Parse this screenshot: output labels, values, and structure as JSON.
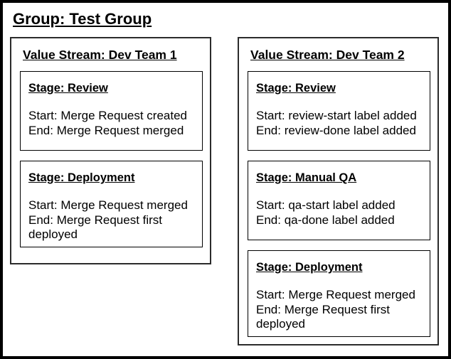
{
  "group": {
    "title": "Group: Test Group",
    "value_streams": [
      {
        "title": "Value Stream: Dev Team 1",
        "stages": [
          {
            "title": "Stage: Review",
            "start": "Start: Merge Request created",
            "end": "End: Merge Request merged"
          },
          {
            "title": "Stage: Deployment",
            "start": "Start: Merge Request merged",
            "end": "End: Merge Request first deployed"
          }
        ]
      },
      {
        "title": "Value Stream: Dev Team 2",
        "stages": [
          {
            "title": "Stage: Review",
            "start": "Start: review-start label added",
            "end": "End: review-done label added"
          },
          {
            "title": "Stage: Manual QA",
            "start": "Start: qa-start label added",
            "end": "End: qa-done label added"
          },
          {
            "title": "Stage: Deployment",
            "start": "Start: Merge Request merged",
            "end": "End: Merge Request first deployed"
          }
        ]
      }
    ]
  },
  "colors": {
    "outer_border": "#000000",
    "value_stream_border": "#2b2b2b",
    "stage_border": "#000000",
    "background": "#ffffff",
    "text": "#000000"
  }
}
